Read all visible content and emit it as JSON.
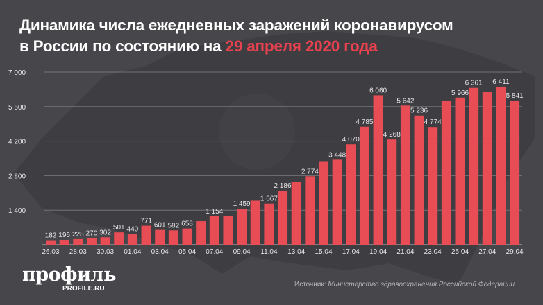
{
  "title": {
    "line1": "Динамика числа ежедневных заражений коронавирусом",
    "line2_prefix": "в России по состоянию на ",
    "line2_highlight": "29 апреля 2020 года"
  },
  "colors": {
    "background": "#47464b",
    "bar": "#e84c55",
    "highlight": "#e8414f",
    "grid": "#8a898e"
  },
  "logo": {
    "name": "профиль",
    "site": "PROFILE.RU"
  },
  "source": {
    "prefix": "Источник: ",
    "text": "Министерство здравоохранения Российской Федерации"
  },
  "chart_data": {
    "type": "bar",
    "title": "Динамика числа ежедневных заражений коронавирусом в России по состоянию на 29 апреля 2020 года",
    "xlabel": "",
    "ylabel": "",
    "ylim": [
      0,
      7000
    ],
    "yticks": [
      "1 400",
      "2 800",
      "4 200",
      "5 600",
      "7 000"
    ],
    "ytick_values": [
      1400,
      2800,
      4200,
      5600,
      7000
    ],
    "grid": true,
    "categories": [
      "26.03",
      "27.03",
      "28.03",
      "29.03",
      "30.03",
      "31.03",
      "01.04",
      "02.04",
      "03.04",
      "04.04",
      "05.04",
      "06.04",
      "07.04",
      "08.04",
      "09.04",
      "10.04",
      "11.04",
      "12.04",
      "13.04",
      "14.04",
      "15.04",
      "16.04",
      "17.04",
      "18.04",
      "19.04",
      "20.04",
      "21.04",
      "22.04",
      "23.04",
      "24.04",
      "25.04",
      "26.04",
      "27.04",
      "28.04",
      "29.04"
    ],
    "xtick_labels": [
      "26.03",
      "28.03",
      "30.03",
      "01.04",
      "03.04",
      "05.04",
      "07.04",
      "09.04",
      "11.04",
      "13.04",
      "15.04",
      "17.04",
      "19.04",
      "21.04",
      "23.04",
      "25.04",
      "27.04",
      "29.04"
    ],
    "values": [
      182,
      196,
      228,
      270,
      302,
      501,
      440,
      771,
      601,
      582,
      658,
      954,
      1154,
      1175,
      1459,
      1786,
      1667,
      2186,
      2558,
      2774,
      3388,
      3448,
      4070,
      4785,
      6060,
      4268,
      5642,
      5236,
      4774,
      5849,
      5966,
      6361,
      6198,
      6411,
      5841
    ],
    "data_labels": [
      "182",
      "196",
      "228",
      "270",
      "302",
      "501",
      "440",
      "771",
      "601",
      "582",
      "658",
      "",
      "1 154",
      "",
      "1 459",
      "",
      "1 667",
      "2 186",
      "",
      "2 774",
      "",
      "3 448",
      "4 070",
      "4 785",
      "6 060",
      "4 268",
      "5 642",
      "5 236",
      "4 774",
      "",
      "5 966",
      "6 361",
      "",
      "6 411",
      "5 841"
    ]
  }
}
